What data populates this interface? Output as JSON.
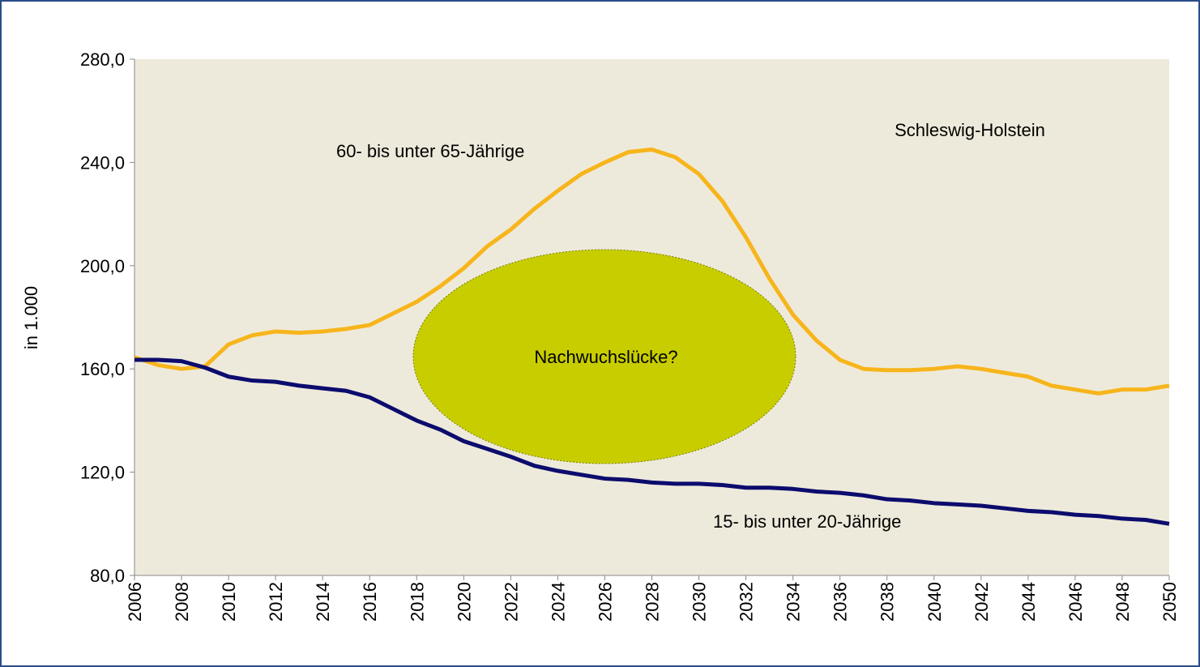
{
  "chart_data": {
    "type": "line",
    "y_label": "in 1.000",
    "annotations": [
      "Schleswig-Holstein",
      "Nachwuchslücke?"
    ],
    "x": [
      2006,
      2007,
      2008,
      2009,
      2010,
      2011,
      2012,
      2013,
      2014,
      2015,
      2016,
      2017,
      2018,
      2019,
      2020,
      2021,
      2022,
      2023,
      2024,
      2025,
      2026,
      2027,
      2028,
      2029,
      2030,
      2031,
      2032,
      2033,
      2034,
      2035,
      2036,
      2037,
      2038,
      2039,
      2040,
      2041,
      2042,
      2043,
      2044,
      2045,
      2046,
      2047,
      2048,
      2049,
      2050
    ],
    "series": [
      {
        "name": "60- bis unter 65-Jährige",
        "color": "#f7b51c",
        "values": [
          164.5,
          161.5,
          160,
          161,
          169.5,
          173,
          174.5,
          174,
          174.5,
          175.5,
          177,
          181.5,
          186,
          192,
          199,
          207.5,
          214,
          222,
          229,
          235.5,
          240,
          244,
          245,
          242,
          235.5,
          225,
          211,
          195,
          181,
          171,
          163.5,
          160,
          159.5,
          159.5,
          160,
          161,
          160,
          158.5,
          157,
          153.5,
          152,
          150.5,
          152,
          152,
          153.5
        ]
      },
      {
        "name": "15- bis unter 20-Jährige",
        "color": "#0c0c6e",
        "values": [
          163.5,
          163.5,
          163,
          160.5,
          157,
          155.5,
          155,
          153.5,
          152.5,
          151.5,
          149,
          144.5,
          140,
          136.5,
          132,
          129,
          126,
          122.5,
          120.5,
          119,
          117.5,
          117,
          116,
          115.5,
          115.5,
          115,
          114,
          114,
          113.5,
          112.5,
          112,
          111,
          109.5,
          109,
          108,
          107.5,
          107,
          106,
          105,
          104.5,
          103.5,
          103,
          102,
          101.5,
          100
        ]
      }
    ],
    "xlim": [
      2006,
      2050
    ],
    "xticks": [
      2006,
      2008,
      2010,
      2012,
      2014,
      2016,
      2018,
      2020,
      2022,
      2024,
      2026,
      2028,
      2030,
      2032,
      2034,
      2036,
      2038,
      2040,
      2042,
      2044,
      2046,
      2048,
      2050
    ],
    "ylim": [
      80,
      280
    ],
    "yticks": [
      {
        "value": 80,
        "label": "80,0"
      },
      {
        "value": 120,
        "label": "120,0"
      },
      {
        "value": 160,
        "label": "160,0"
      },
      {
        "value": 200,
        "label": "200,0"
      },
      {
        "value": 240,
        "label": "240,0"
      },
      {
        "value": 280,
        "label": "280,0"
      }
    ]
  }
}
